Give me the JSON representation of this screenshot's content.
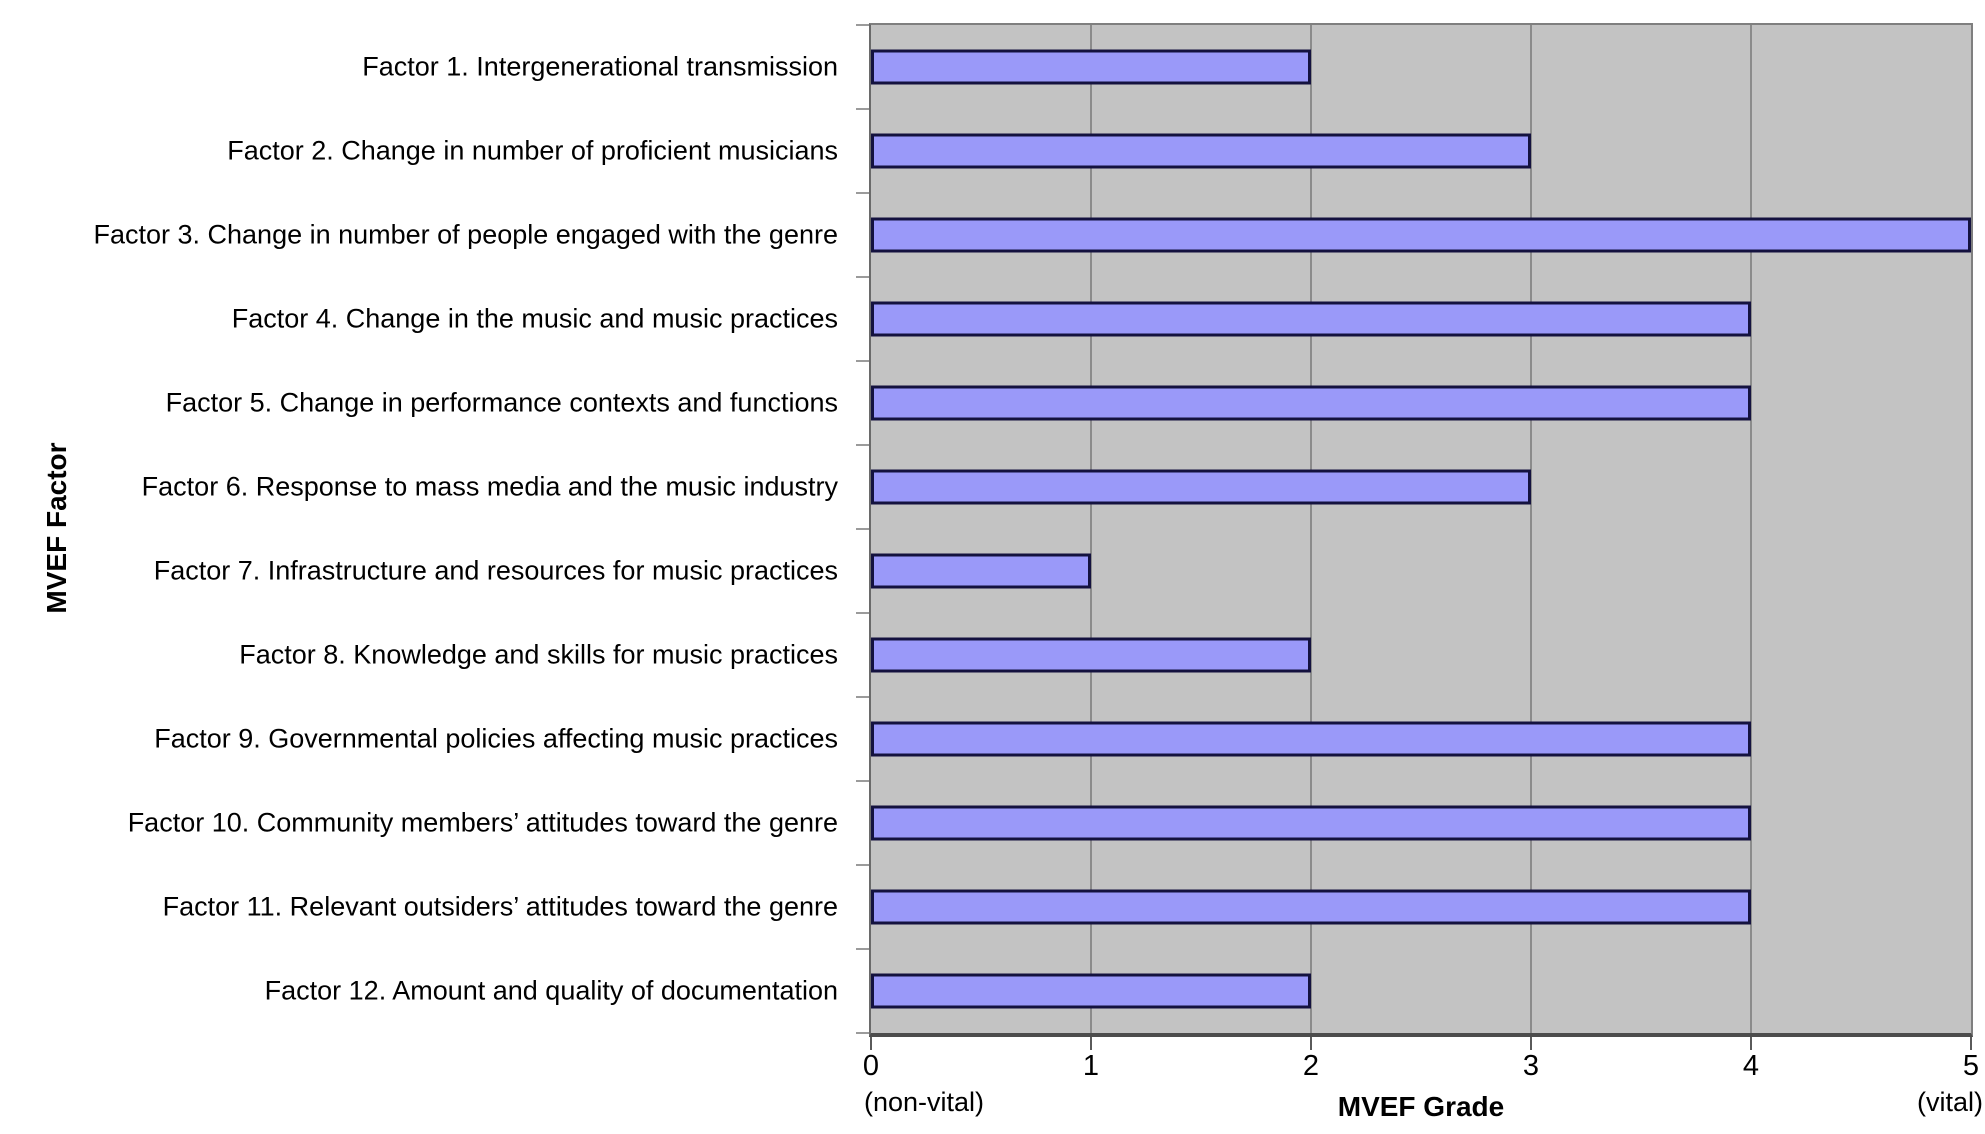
{
  "chart_data": {
    "type": "bar",
    "orientation": "horizontal",
    "title": "",
    "xlabel": "MVEF Grade",
    "ylabel": "MVEF Factor",
    "xlim": [
      0,
      5
    ],
    "xticks": [
      "0",
      "1",
      "2",
      "3",
      "4",
      "5"
    ],
    "x_axis_annotations": {
      "left": "(non-vital)",
      "right": "(vital)"
    },
    "grid": true,
    "legend": false,
    "plot_background": "gray",
    "categories": [
      "Factor 1. Intergenerational transmission",
      "Factor 2. Change in number of proficient musicians",
      "Factor 3. Change in number of people engaged with the genre",
      "Factor 4. Change in the music and music practices",
      "Factor 5. Change in performance contexts and functions",
      "Factor 6. Response to mass media and the music industry",
      "Factor 7. Infrastructure and resources for music practices",
      "Factor 8. Knowledge and skills for music practices",
      "Factor 9. Governmental policies affecting music practices",
      "Factor 10. Community members’ attitudes toward the genre",
      "Factor 11. Relevant outsiders’ attitudes toward the genre",
      "Factor 12. Amount and quality of documentation"
    ],
    "values": [
      2,
      3,
      5,
      4,
      4,
      3,
      1,
      2,
      4,
      4,
      4,
      2
    ],
    "colors": {
      "bar_fill": "#9a99f9",
      "bar_border": "#14123f",
      "plot_bg": "#c3c3c3",
      "gridline": "#8b8b8b",
      "plot_border": "#7f7f7f",
      "axis_line": "#4c4c4c",
      "axis_line_left": "#6a6a6a",
      "tick_mark": "#5a5a5a",
      "y_tick_mark": "#9b9b9b",
      "text": "#000000",
      "background": "#ffffff"
    }
  }
}
